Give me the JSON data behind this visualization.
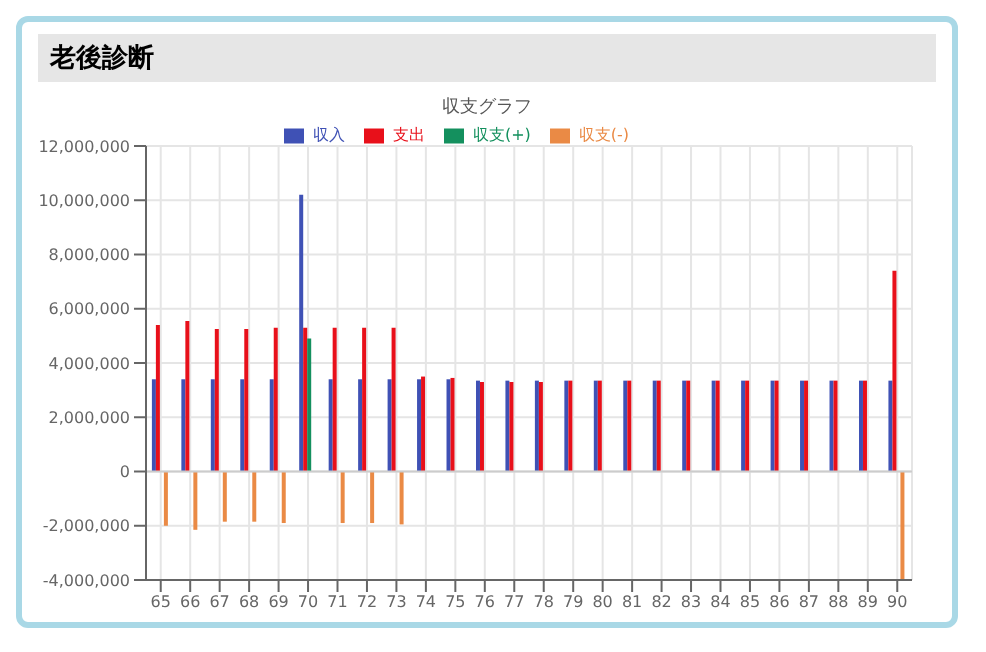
{
  "chart_data": {
    "type": "bar",
    "title": "老後診断",
    "subtitle": "収支グラフ",
    "categories": [
      "65",
      "66",
      "67",
      "68",
      "69",
      "70",
      "71",
      "72",
      "73",
      "74",
      "75",
      "76",
      "77",
      "78",
      "79",
      "80",
      "81",
      "82",
      "83",
      "84",
      "85",
      "86",
      "87",
      "88",
      "89",
      "90"
    ],
    "series": [
      {
        "name": "収入",
        "color": "#3f51b5",
        "values": [
          3400000,
          3400000,
          3400000,
          3400000,
          3400000,
          10200000,
          3400000,
          3400000,
          3400000,
          3400000,
          3400000,
          3350000,
          3350000,
          3350000,
          3350000,
          3350000,
          3350000,
          3350000,
          3350000,
          3350000,
          3350000,
          3350000,
          3350000,
          3350000,
          3350000,
          3350000
        ]
      },
      {
        "name": "支出",
        "color": "#e8101a",
        "values": [
          5400000,
          5550000,
          5250000,
          5250000,
          5300000,
          5300000,
          5300000,
          5300000,
          5300000,
          3500000,
          3450000,
          3300000,
          3300000,
          3300000,
          3350000,
          3350000,
          3350000,
          3350000,
          3350000,
          3350000,
          3350000,
          3350000,
          3350000,
          3350000,
          3350000,
          7400000
        ]
      },
      {
        "name": "収支(+)",
        "color": "#14905e",
        "values": [
          null,
          null,
          null,
          null,
          null,
          4900000,
          null,
          null,
          null,
          null,
          null,
          null,
          null,
          null,
          null,
          null,
          null,
          null,
          null,
          null,
          null,
          null,
          null,
          null,
          null,
          null
        ]
      },
      {
        "name": "収支(-)",
        "color": "#ea8a45",
        "values": [
          -2000000,
          -2150000,
          -1850000,
          -1850000,
          -1900000,
          null,
          -1900000,
          -1900000,
          -1950000,
          null,
          null,
          null,
          null,
          null,
          null,
          null,
          null,
          null,
          null,
          null,
          null,
          null,
          null,
          null,
          null,
          -4000000
        ]
      }
    ],
    "ylim": [
      -4000000,
      12000000
    ],
    "yticks": [
      {
        "value": -4000000,
        "label": "-4,000,000"
      },
      {
        "value": -2000000,
        "label": "-2,000,000"
      },
      0,
      {
        "value": 2000000,
        "label": "2,000,000"
      },
      {
        "value": 4000000,
        "label": "4,000,000"
      },
      {
        "value": 6000000,
        "label": "6,000,000"
      },
      {
        "value": 8000000,
        "label": "8,000,000"
      },
      {
        "value": 10000000,
        "label": "10,000,000"
      },
      {
        "value": 12000000,
        "label": "12,000,000"
      }
    ],
    "grid": true,
    "legend": "top"
  }
}
